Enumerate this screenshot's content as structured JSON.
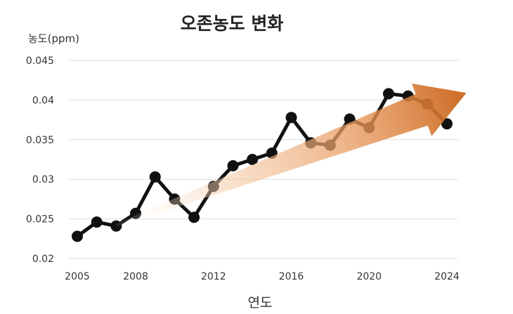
{
  "chart_data": {
    "type": "line",
    "title": "오존농도  변화",
    "ylabel": "농도(ppm)",
    "xlabel": "연도",
    "xlim": [
      2005,
      2024
    ],
    "ylim": [
      0.02,
      0.045
    ],
    "x_ticks": [
      "2005",
      "2008",
      "2012",
      "2016",
      "2020",
      "2024"
    ],
    "y_ticks": [
      "0.045",
      "0.04",
      "0.035",
      "0.03",
      "0.025",
      "0.02"
    ],
    "grid": "horizontal",
    "series": [
      {
        "color": "#111111",
        "x": [
          2005,
          2006,
          2007,
          2008,
          2009,
          2010,
          2011,
          2012,
          2013,
          2014,
          2015,
          2016,
          2017,
          2018,
          2019,
          2020,
          2021,
          2022,
          2023,
          2024
        ],
        "values": [
          0.0228,
          0.0246,
          0.0241,
          0.0257,
          0.0303,
          0.0275,
          0.0252,
          0.0291,
          0.0317,
          0.0325,
          0.0333,
          0.0378,
          0.0346,
          0.0343,
          0.0376,
          0.0365,
          0.0408,
          0.0405,
          0.0395,
          0.037
        ]
      }
    ],
    "trend_arrow": {
      "from": [
        2007,
        0.0242
      ],
      "to": [
        2025,
        0.0409
      ],
      "color": "#d4732a"
    }
  }
}
